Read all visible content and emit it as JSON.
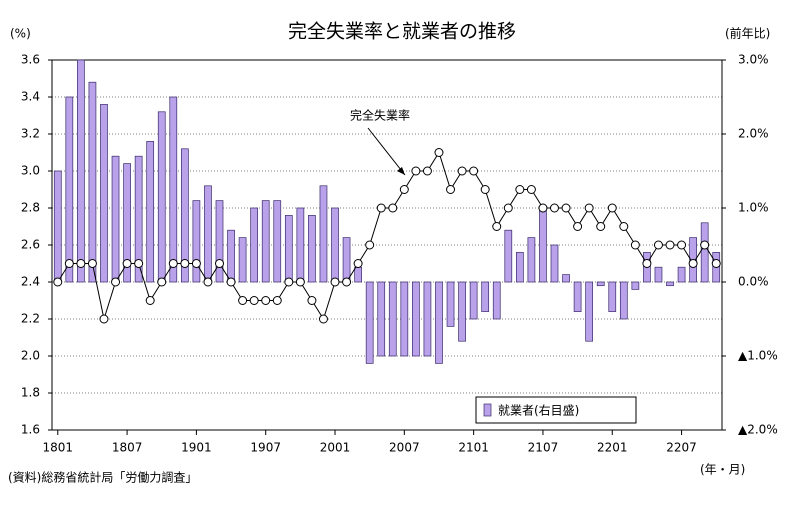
{
  "chart_data": {
    "type": "bar_line",
    "title": "完全失業率と就業者の推移",
    "y_label": "(%)",
    "y2_label": "(前年比)",
    "x_label": "(年・月)",
    "source": "(資料)総務省統計局「労働力調査」",
    "categories": [
      "1801",
      null,
      null,
      null,
      null,
      null,
      "1807",
      null,
      null,
      null,
      null,
      null,
      "1901",
      null,
      null,
      null,
      null,
      null,
      "1907",
      null,
      null,
      null,
      null,
      null,
      "2001",
      null,
      null,
      null,
      null,
      null,
      "2007",
      null,
      null,
      null,
      null,
      null,
      "2101",
      null,
      null,
      null,
      null,
      null,
      "2107",
      null,
      null,
      null,
      null,
      null,
      "2201",
      null,
      null,
      null,
      null,
      null,
      "2207",
      null,
      null,
      null
    ],
    "series": [
      {
        "name": "就業者(右目盛)",
        "type": "bar",
        "axis": "y2",
        "color": "#b9a2ea",
        "values": [
          1.5,
          2.5,
          3.0,
          2.7,
          2.4,
          1.7,
          1.6,
          1.7,
          1.9,
          2.3,
          2.5,
          1.8,
          1.1,
          1.3,
          1.1,
          0.7,
          0.6,
          1.0,
          1.1,
          1.1,
          0.9,
          1.0,
          0.9,
          1.3,
          1.0,
          0.6,
          0.2,
          -1.1,
          -1.0,
          -1.0,
          -1.0,
          -1.0,
          -1.0,
          -1.1,
          -0.6,
          -0.8,
          -0.5,
          -0.4,
          -0.5,
          0.7,
          0.4,
          0.6,
          1.0,
          0.5,
          0.1,
          -0.4,
          -0.8,
          -0.05,
          -0.4,
          -0.5,
          -0.1,
          0.4,
          0.2,
          -0.05,
          0.2,
          0.6,
          0.8,
          0.4
        ]
      },
      {
        "name": "完全失業率",
        "type": "line",
        "color": "#000000",
        "values": [
          2.4,
          2.5,
          2.5,
          2.5,
          2.2,
          2.4,
          2.5,
          2.5,
          2.3,
          2.4,
          2.5,
          2.5,
          2.5,
          2.4,
          2.5,
          2.4,
          2.3,
          2.3,
          2.3,
          2.3,
          2.4,
          2.4,
          2.3,
          2.2,
          2.4,
          2.4,
          2.5,
          2.6,
          2.8,
          2.8,
          2.9,
          3.0,
          3.0,
          3.1,
          2.9,
          3.0,
          3.0,
          2.9,
          2.7,
          2.8,
          2.9,
          2.9,
          2.8,
          2.8,
          2.8,
          2.7,
          2.8,
          2.7,
          2.8,
          2.7,
          2.6,
          2.5,
          2.6,
          2.6,
          2.6,
          2.5,
          2.6,
          2.5
        ]
      }
    ],
    "ylim": [
      1.6,
      3.6
    ],
    "yticks": [
      1.6,
      1.8,
      {
        "value": 2,
        "label": "2.0"
      },
      2.2,
      2.4,
      2.6,
      2.8,
      {
        "value": 3,
        "label": "3.0"
      },
      3.2,
      3.4,
      3.6
    ],
    "y2lim": [
      -2,
      3
    ],
    "y2ticks": [
      {
        "value": -2,
        "label": "▲2.0%"
      },
      {
        "value": -1,
        "label": "▲1.0%"
      },
      {
        "value": 0,
        "label": "0.0%"
      },
      {
        "value": 1,
        "label": "1.0%"
      },
      {
        "value": 2,
        "label": "2.0%"
      },
      {
        "value": 3,
        "label": "3.0%"
      }
    ],
    "grid": true
  }
}
